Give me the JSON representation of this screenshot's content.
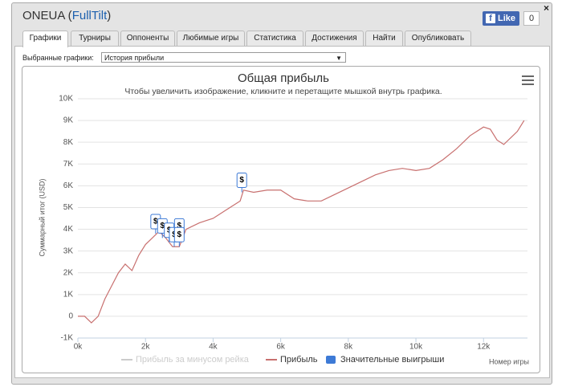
{
  "header": {
    "title_parts": [
      "ONEUA (",
      "FullTilt",
      ")"
    ],
    "like": "Like",
    "like_count": "0",
    "close": "×"
  },
  "tabs": [
    "Графики",
    "Турниры",
    "Оппоненты",
    "Любимые игры",
    "Статистика",
    "Достижения",
    "Найти",
    "Опубликовать"
  ],
  "selector": {
    "label": "Выбранные графики:",
    "value": "История прибыли"
  },
  "chart_data": {
    "type": "line",
    "title": "Общая прибыль",
    "subtitle": "Чтобы увеличить изображение, кликните и перетащите мышкой внутрь графика.",
    "y_label": "Суммарный итог (USD)",
    "x_label": "Номер игры",
    "xlim": [
      0,
      13300
    ],
    "ylim": [
      -1000,
      10000
    ],
    "xticks": [
      {
        "value": 0,
        "label": "0k"
      },
      {
        "value": 2000,
        "label": "2k"
      },
      {
        "value": 4000,
        "label": "4k"
      },
      {
        "value": 6000,
        "label": "6k"
      },
      {
        "value": 8000,
        "label": "8k"
      },
      {
        "value": 10000,
        "label": "10k"
      },
      {
        "value": 12000,
        "label": "12k"
      }
    ],
    "yticks": [
      {
        "value": -1000,
        "label": "-1K"
      },
      0,
      {
        "value": 1000,
        "label": "1K"
      },
      {
        "value": 2000,
        "label": "2K"
      },
      {
        "value": 3000,
        "label": "3K"
      },
      {
        "value": 4000,
        "label": "4K"
      },
      {
        "value": 5000,
        "label": "5K"
      },
      {
        "value": 6000,
        "label": "6K"
      },
      {
        "value": 7000,
        "label": "7K"
      },
      {
        "value": 8000,
        "label": "8K"
      },
      {
        "value": 9000,
        "label": "9K"
      },
      {
        "value": 10000,
        "label": "10K"
      }
    ],
    "grid": true,
    "series": [
      {
        "name": "Прибыль за минусом рейка",
        "color": "#cccccc",
        "visible": false
      },
      {
        "name": "Прибыль",
        "color": "#c8706f",
        "visible": true,
        "x": [
          0,
          200,
          400,
          600,
          800,
          1000,
          1200,
          1400,
          1600,
          1800,
          2000,
          2200,
          2400,
          2600,
          2800,
          3000,
          3200,
          3600,
          4000,
          4400,
          4800,
          4900,
          5200,
          5600,
          6000,
          6400,
          6800,
          7200,
          7600,
          8000,
          8400,
          8800,
          9200,
          9600,
          10000,
          10400,
          10800,
          11200,
          11600,
          12000,
          12200,
          12400,
          12600,
          12800,
          13000,
          13200
        ],
        "values": [
          0,
          0,
          -300,
          0,
          800,
          1400,
          2000,
          2400,
          2100,
          2800,
          3300,
          3600,
          3900,
          3600,
          3200,
          3200,
          4000,
          4300,
          4500,
          4900,
          5300,
          5800,
          5700,
          5800,
          5800,
          5400,
          5300,
          5300,
          5600,
          5900,
          6200,
          6500,
          6700,
          6800,
          6700,
          6800,
          7200,
          7700,
          8300,
          8700,
          8600,
          8100,
          7900,
          8200,
          8500,
          9000
        ]
      }
    ],
    "flags": {
      "name": "Значительные выигрыши",
      "color": "#3d7ad6",
      "label": "$",
      "x": [
        2300,
        2500,
        2700,
        2850,
        3000,
        3000,
        4850
      ],
      "values": [
        3800,
        3600,
        3400,
        3200,
        3600,
        3200,
        5700
      ]
    }
  }
}
